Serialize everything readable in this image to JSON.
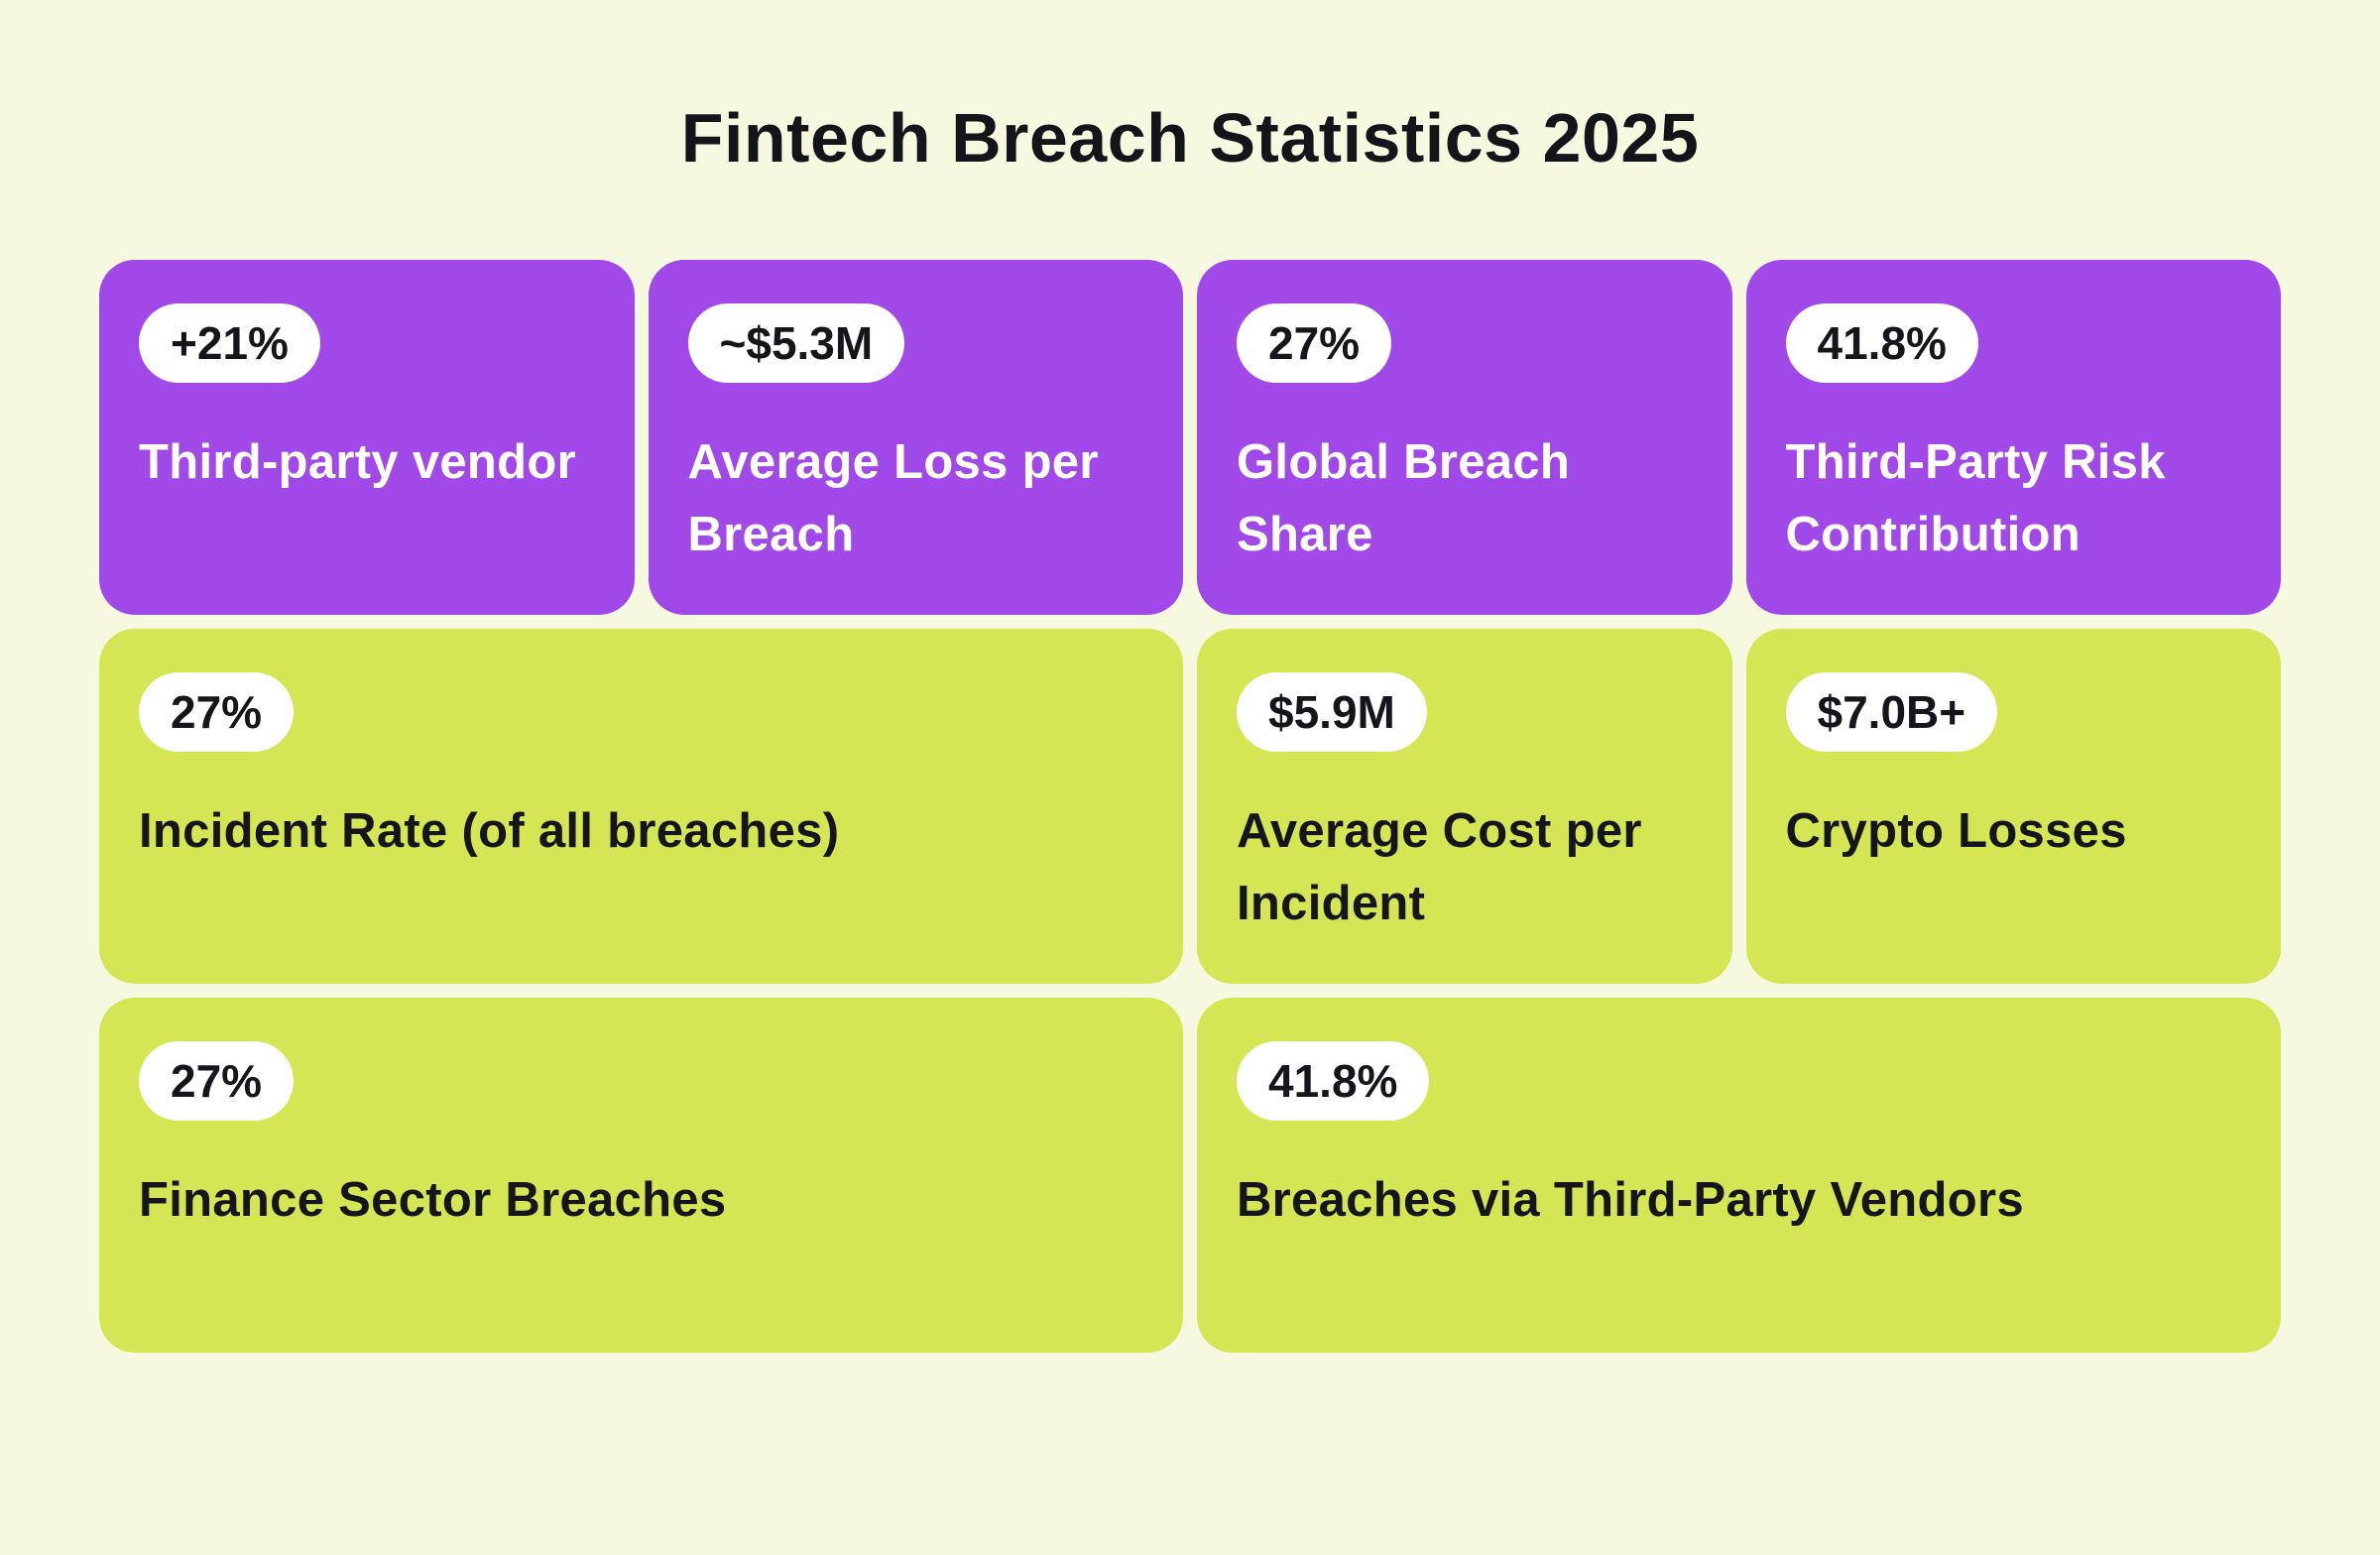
{
  "page": {
    "title": "Fintech Breach Statistics 2025"
  },
  "colors": {
    "background": "#f6f9df",
    "card_purple": "#a149e8",
    "card_green": "#d4e654",
    "badge_background": "#ffffff",
    "badge_text": "#15161c",
    "text_on_purple": "#ffffff",
    "text_on_green": "#15161c",
    "title_text": "#14151b"
  },
  "cards": [
    {
      "badge": "+21%",
      "label": "Third-party vendor",
      "variant": "purple",
      "span": 1
    },
    {
      "badge": "~$5.3M",
      "label": "Average Loss per Breach",
      "variant": "purple",
      "span": 1
    },
    {
      "badge": "27%",
      "label": "Global Breach Share",
      "variant": "purple",
      "span": 1
    },
    {
      "badge": "41.8%",
      "label": "Third-Party Risk Contribution",
      "variant": "purple",
      "span": 1
    },
    {
      "badge": "27%",
      "label": "Incident Rate (of all breaches)",
      "variant": "green",
      "span": 2
    },
    {
      "badge": "$5.9M",
      "label": "Average Cost per Incident",
      "variant": "green",
      "span": 1
    },
    {
      "badge": "$7.0B+",
      "label": "Crypto Losses",
      "variant": "green",
      "span": 1
    },
    {
      "badge": "27%",
      "label": "Finance Sector Breaches",
      "variant": "green",
      "span": 2
    },
    {
      "badge": "41.8%",
      "label": "Breaches via Third-Party Vendors",
      "variant": "green",
      "span": 2
    }
  ],
  "chart_data": {
    "type": "table",
    "title": "Fintech Breach Statistics 2025",
    "columns": [
      "value",
      "metric"
    ],
    "rows": [
      [
        "+21%",
        "Third-party vendor"
      ],
      [
        "~$5.3M",
        "Average Loss per Breach"
      ],
      [
        "27%",
        "Global Breach Share"
      ],
      [
        "41.8%",
        "Third-Party Risk Contribution"
      ],
      [
        "27%",
        "Incident Rate (of all breaches)"
      ],
      [
        "$5.9M",
        "Average Cost per Incident"
      ],
      [
        "$7.0B+",
        "Crypto Losses"
      ],
      [
        "27%",
        "Finance Sector Breaches"
      ],
      [
        "41.8%",
        "Breaches via Third-Party Vendors"
      ]
    ]
  }
}
